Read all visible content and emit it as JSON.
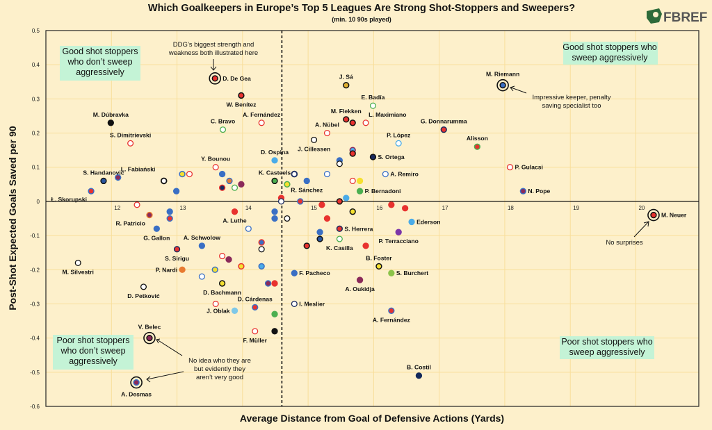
{
  "logo_text": "FBREF",
  "chart_data": {
    "type": "scatter",
    "title": "Which Goalkeepers in Europe’s Top 5 Leagues Are Strong Shot-Stoppers and Sweepers?",
    "subtitle": "(min. 10 90s played)",
    "xlabel": "Average Distance from Goal of Defensive Actions (Yards)",
    "ylabel": "Post-Shot Expected Goals Saved per 90",
    "xlim": [
      11.0,
      20.96
    ],
    "ylim": [
      -0.6,
      0.5
    ],
    "xticks": [
      12,
      13,
      14,
      15,
      16,
      17,
      18,
      19,
      20
    ],
    "yticks": [
      0.5,
      0.4,
      0.3,
      0.2,
      0.1,
      0,
      -0.1,
      -0.2,
      -0.3,
      -0.4,
      -0.5,
      -0.6
    ],
    "grid": true,
    "vline_x": 14.6,
    "quadrants": {
      "top_left": "Good shot stoppers\nwho don’t sweep\naggressively",
      "top_right": "Good shot stoppers who\nsweep aggressively",
      "bottom_left": "Poor shot stoppers\nwho don’t sweep\naggressively",
      "bottom_right": "Poor shot stoppers who\nsweep aggressively"
    },
    "annotations": {
      "degea": "DDG’s biggest strength and\nweakness both illustrated here",
      "riemann": "Impressive keeper, penalty\nsaving specialist too",
      "neuer": "No surprises",
      "belec_desmas": "No idea who they are\nbut evidently they\naren’t very good"
    },
    "colors": {
      "background": "#fdf0cb",
      "quadrant_bg": "#c4f3d6"
    },
    "points": [
      {
        "name": "D. De Gea",
        "x": 13.58,
        "y": 0.36,
        "fill": "#e8322f",
        "stroke": "#111",
        "ring": true,
        "pos": "right"
      },
      {
        "name": "W. Benítez",
        "x": 13.98,
        "y": 0.31,
        "fill": "#e8322f",
        "stroke": "#111",
        "pos": "below"
      },
      {
        "name": "A. Fernández",
        "x": 14.29,
        "y": 0.23,
        "fill": "#fff",
        "stroke": "#e8322f",
        "pos": "above"
      },
      {
        "name": "C. Bravo",
        "x": 13.7,
        "y": 0.21,
        "fill": "#fff",
        "stroke": "#4caf50",
        "pos": "above"
      },
      {
        "name": "M. Dúbravka",
        "x": 11.99,
        "y": 0.23,
        "fill": "#111",
        "stroke": "#111",
        "pos": "above"
      },
      {
        "name": "S. Dimitrievski",
        "x": 12.29,
        "y": 0.17,
        "fill": "#fff",
        "stroke": "#e8322f",
        "pos": "above"
      },
      {
        "name": "D. Ospina",
        "x": 14.49,
        "y": 0.12,
        "fill": "#4aabe8",
        "stroke": "#4aabe8",
        "pos": "above"
      },
      {
        "name": "Y. Bounou",
        "x": 13.59,
        "y": 0.1,
        "fill": "#fff",
        "stroke": "#e8322f",
        "pos": "above"
      },
      {
        "name": "",
        "x": 13.69,
        "y": 0.08,
        "fill": "#3a6fc4",
        "stroke": "#3a6fc4"
      },
      {
        "name": "K. Casteels",
        "x": 14.49,
        "y": 0.06,
        "fill": "#4caf50",
        "stroke": "#111",
        "pos": "above"
      },
      {
        "name": "S. Handanovic",
        "x": 11.88,
        "y": 0.06,
        "fill": "#2a56a0",
        "stroke": "#111",
        "pos": "above"
      },
      {
        "name": "L. Fabiański",
        "x": 12.1,
        "y": 0.07,
        "fill": "#8b2a5a",
        "stroke": "#3a6fc4",
        "pos": "above-right"
      },
      {
        "name": "",
        "x": 12.8,
        "y": 0.06,
        "fill": "#fff",
        "stroke": "#111",
        "thick": true
      },
      {
        "name": "",
        "x": 13.08,
        "y": 0.08,
        "fill": "#f5e030",
        "stroke": "#3a6fc4"
      },
      {
        "name": "",
        "x": 13.19,
        "y": 0.08,
        "fill": "#fff",
        "stroke": "#e8322f"
      },
      {
        "name": "",
        "x": 12.99,
        "y": 0.03,
        "fill": "#3a6fc4",
        "stroke": "#3a6fc4"
      },
      {
        "name": "",
        "x": 13.8,
        "y": 0.06,
        "fill": "#e87a30",
        "stroke": "#3a6fc4"
      },
      {
        "name": "",
        "x": 13.69,
        "y": 0.04,
        "fill": "#1a2a5e",
        "stroke": "#e8322f"
      },
      {
        "name": "",
        "x": 13.88,
        "y": 0.04,
        "fill": "#fff",
        "stroke": "#4caf50"
      },
      {
        "name": "",
        "x": 13.98,
        "y": 0.05,
        "fill": "#8b2a5a",
        "stroke": "#8b2a5a"
      },
      {
        "name": "Ł. Skorupski",
        "x": 11.69,
        "y": 0.03,
        "fill": "#e8322f",
        "stroke": "#3a6fc4",
        "pos": "below-left"
      },
      {
        "name": "",
        "x": 12.39,
        "y": -0.01,
        "fill": "#fff",
        "stroke": "#e8322f"
      },
      {
        "name": "",
        "x": 14.59,
        "y": 0.01,
        "fill": "#e8322f",
        "stroke": "#e8322f"
      },
      {
        "name": "",
        "x": 14.59,
        "y": 0.0,
        "fill": "#fff",
        "stroke": "#1a2a5e"
      },
      {
        "name": "J. Sá",
        "x": 15.58,
        "y": 0.34,
        "fill": "#e0b030",
        "stroke": "#111",
        "pos": "above"
      },
      {
        "name": "E. Badía",
        "x": 15.99,
        "y": 0.28,
        "fill": "#fff",
        "stroke": "#4caf50",
        "pos": "above"
      },
      {
        "name": "M. Flekken",
        "x": 15.58,
        "y": 0.24,
        "fill": "#e8322f",
        "stroke": "#111",
        "pos": "above"
      },
      {
        "name": "",
        "x": 15.68,
        "y": 0.23,
        "fill": "#e8322f",
        "stroke": "#111"
      },
      {
        "name": "L. Maximiano",
        "x": 15.88,
        "y": 0.23,
        "fill": "#fff",
        "stroke": "#e8322f",
        "pos": "above-right"
      },
      {
        "name": "A. Nübel",
        "x": 15.29,
        "y": 0.2,
        "fill": "#fff",
        "stroke": "#e8322f",
        "pos": "above"
      },
      {
        "name": "J. Cillessen",
        "x": 15.09,
        "y": 0.18,
        "fill": "#fff",
        "stroke": "#111",
        "pos": "below"
      },
      {
        "name": "G. Donnarumma",
        "x": 17.07,
        "y": 0.21,
        "fill": "#e8322f",
        "stroke": "#1a2a5e",
        "pos": "above"
      },
      {
        "name": "Alisson",
        "x": 17.58,
        "y": 0.16,
        "fill": "#e8322f",
        "stroke": "#4caf50",
        "pos": "above"
      },
      {
        "name": "P. López",
        "x": 16.38,
        "y": 0.17,
        "fill": "#fff",
        "stroke": "#4aabe8",
        "pos": "above"
      },
      {
        "name": "",
        "x": 15.68,
        "y": 0.15,
        "fill": "#4aabe8",
        "stroke": "#8b2a5a"
      },
      {
        "name": "",
        "x": 15.68,
        "y": 0.14,
        "fill": "#e8322f",
        "stroke": "#111"
      },
      {
        "name": "S. Ortega",
        "x": 15.99,
        "y": 0.13,
        "fill": "#1a2a5e",
        "stroke": "#111",
        "pos": "right"
      },
      {
        "name": "",
        "x": 15.48,
        "y": 0.12,
        "fill": "#3a6fc4",
        "stroke": "#3a6fc4"
      },
      {
        "name": "",
        "x": 15.48,
        "y": 0.11,
        "fill": "#fff",
        "stroke": "#111"
      },
      {
        "name": "M. Riemann",
        "x": 17.97,
        "y": 0.34,
        "fill": "#3a6fc4",
        "stroke": "#111",
        "ring": true,
        "pos": "above"
      },
      {
        "name": "",
        "x": 14.79,
        "y": 0.08,
        "fill": "#fff",
        "stroke": "#1a2a5e",
        "thick": true
      },
      {
        "name": "",
        "x": 15.29,
        "y": 0.08,
        "fill": "#fff",
        "stroke": "#3a6fc4"
      },
      {
        "name": "A. Remiro",
        "x": 16.18,
        "y": 0.08,
        "fill": "#fff",
        "stroke": "#3a6fc4",
        "pos": "right"
      },
      {
        "name": "R. Sánchez",
        "x": 14.98,
        "y": 0.06,
        "fill": "#3a6fc4",
        "stroke": "#3a6fc4",
        "pos": "below"
      },
      {
        "name": "",
        "x": 15.68,
        "y": 0.06,
        "fill": "#fff",
        "stroke": "#e8322f"
      },
      {
        "name": "",
        "x": 15.79,
        "y": 0.06,
        "fill": "#f5e030",
        "stroke": "#f5e030"
      },
      {
        "name": "",
        "x": 14.68,
        "y": 0.05,
        "fill": "#f5e030",
        "stroke": "#4caf50"
      },
      {
        "name": "P. Bernadoni",
        "x": 15.79,
        "y": 0.03,
        "fill": "#4caf50",
        "stroke": "#4caf50",
        "pos": "right"
      },
      {
        "name": "P. Gulacsi",
        "x": 18.08,
        "y": 0.1,
        "fill": "#fff",
        "stroke": "#e8322f",
        "pos": "right"
      },
      {
        "name": "N. Pope",
        "x": 18.28,
        "y": 0.03,
        "fill": "#8b2a5a",
        "stroke": "#3a6fc4",
        "pos": "right"
      },
      {
        "name": "",
        "x": 14.88,
        "y": 0.0,
        "fill": "#e8322f",
        "stroke": "#3a6fc4"
      },
      {
        "name": "",
        "x": 15.48,
        "y": 0.0,
        "fill": "#e8322f",
        "stroke": "#111"
      },
      {
        "name": "",
        "x": 15.58,
        "y": 0.01,
        "fill": "#4aabe8",
        "stroke": "#4aabe8"
      },
      {
        "name": "M. Neuer",
        "x": 20.27,
        "y": -0.04,
        "fill": "#e8322f",
        "stroke": "#111",
        "ring": true,
        "pos": "right"
      },
      {
        "name": "R. Patricio",
        "x": 12.58,
        "y": -0.04,
        "fill": "#8b2a5a",
        "stroke": "#e87a30",
        "pos": "below-left"
      },
      {
        "name": "",
        "x": 12.89,
        "y": -0.03,
        "fill": "#3a6fc4",
        "stroke": "#3a6fc4"
      },
      {
        "name": "",
        "x": 12.89,
        "y": -0.05,
        "fill": "#e8322f",
        "stroke": "#3a6fc4"
      },
      {
        "name": "G. Gallon",
        "x": 12.69,
        "y": -0.08,
        "fill": "#3a6fc4",
        "stroke": "#3a6fc4",
        "pos": "below"
      },
      {
        "name": "A. Luthe",
        "x": 13.88,
        "y": -0.03,
        "fill": "#e8322f",
        "stroke": "#e8322f",
        "pos": "below"
      },
      {
        "name": "",
        "x": 14.49,
        "y": -0.03,
        "fill": "#3a6fc4",
        "stroke": "#3a6fc4"
      },
      {
        "name": "",
        "x": 14.49,
        "y": -0.05,
        "fill": "#3a6fc4",
        "stroke": "#3a6fc4"
      },
      {
        "name": "",
        "x": 14.09,
        "y": -0.08,
        "fill": "#fff",
        "stroke": "#3a6fc4"
      },
      {
        "name": "A. Schwolow",
        "x": 13.38,
        "y": -0.13,
        "fill": "#3a6fc4",
        "stroke": "#3a6fc4",
        "pos": "above"
      },
      {
        "name": "",
        "x": 14.29,
        "y": -0.12,
        "fill": "#3a6fc4",
        "stroke": "#e8322f"
      },
      {
        "name": "",
        "x": 14.29,
        "y": -0.14,
        "fill": "#fff",
        "stroke": "#111"
      },
      {
        "name": "S. Sirigu",
        "x": 13.0,
        "y": -0.14,
        "fill": "#e8322f",
        "stroke": "#1a2a5e",
        "pos": "below"
      },
      {
        "name": "",
        "x": 13.69,
        "y": -0.16,
        "fill": "#fff",
        "stroke": "#e8322f"
      },
      {
        "name": "",
        "x": 13.79,
        "y": -0.17,
        "fill": "#8b2a5a",
        "stroke": "#8b2a5a"
      },
      {
        "name": "",
        "x": 14.29,
        "y": -0.19,
        "fill": "#4aabe8",
        "stroke": "#3a6fc4"
      },
      {
        "name": "",
        "x": 13.98,
        "y": -0.19,
        "fill": "#f5e030",
        "stroke": "#e8322f"
      },
      {
        "name": "",
        "x": 13.58,
        "y": -0.2,
        "fill": "#f5e030",
        "stroke": "#3a6fc4"
      },
      {
        "name": "P. Nardi",
        "x": 13.08,
        "y": -0.2,
        "fill": "#e87a30",
        "stroke": "#e87a30",
        "pos": "left"
      },
      {
        "name": "",
        "x": 13.38,
        "y": -0.22,
        "fill": "#fff",
        "stroke": "#3a6fc4"
      },
      {
        "name": "D. Bachmann",
        "x": 13.69,
        "y": -0.24,
        "fill": "#f5e030",
        "stroke": "#111",
        "pos": "below"
      },
      {
        "name": "",
        "x": 14.39,
        "y": -0.24,
        "fill": "#8b2a5a",
        "stroke": "#3a6fc4"
      },
      {
        "name": "",
        "x": 14.49,
        "y": -0.24,
        "fill": "#e8322f",
        "stroke": "#e8322f"
      },
      {
        "name": "M. Silvestri",
        "x": 11.49,
        "y": -0.18,
        "fill": "#fff",
        "stroke": "#111",
        "pos": "below"
      },
      {
        "name": "D. Petković",
        "x": 12.49,
        "y": -0.25,
        "fill": "#fff",
        "stroke": "#111",
        "pos": "below"
      },
      {
        "name": "",
        "x": 13.59,
        "y": -0.3,
        "fill": "#fff",
        "stroke": "#e8322f"
      },
      {
        "name": "J. Oblak",
        "x": 13.88,
        "y": -0.32,
        "fill": "#7ec8e8",
        "stroke": "#7ec8e8",
        "pos": "left"
      },
      {
        "name": "D. Cárdenas",
        "x": 14.19,
        "y": -0.31,
        "fill": "#e8322f",
        "stroke": "#3a6fc4",
        "pos": "above"
      },
      {
        "name": "",
        "x": 14.49,
        "y": -0.33,
        "fill": "#4caf50",
        "stroke": "#4caf50"
      },
      {
        "name": "F. Müller",
        "x": 14.19,
        "y": -0.38,
        "fill": "#fff",
        "stroke": "#e8322f",
        "pos": "below"
      },
      {
        "name": "",
        "x": 14.49,
        "y": -0.38,
        "fill": "#111",
        "stroke": "#111"
      },
      {
        "name": "V. Belec",
        "x": 12.58,
        "y": -0.4,
        "fill": "#8b2a5a",
        "stroke": "#111",
        "ring": true,
        "pos": "above"
      },
      {
        "name": "A. Desmas",
        "x": 12.38,
        "y": -0.53,
        "fill": "#8b2a5a",
        "stroke": "#3a6fc4",
        "ring": true,
        "pos": "below"
      },
      {
        "name": "",
        "x": 15.21,
        "y": -0.01,
        "fill": "#e8322f",
        "stroke": "#e8322f"
      },
      {
        "name": "",
        "x": 16.27,
        "y": -0.01,
        "fill": "#e8322f",
        "stroke": "#e8322f"
      },
      {
        "name": "",
        "x": 16.48,
        "y": -0.02,
        "fill": "#e8322f",
        "stroke": "#e8322f"
      },
      {
        "name": "",
        "x": 15.68,
        "y": -0.03,
        "fill": "#f5e030",
        "stroke": "#111"
      },
      {
        "name": "",
        "x": 14.68,
        "y": -0.05,
        "fill": "#fff",
        "stroke": "#111"
      },
      {
        "name": "",
        "x": 15.29,
        "y": -0.05,
        "fill": "#e8322f",
        "stroke": "#e8322f"
      },
      {
        "name": "Ederson",
        "x": 16.58,
        "y": -0.06,
        "fill": "#4aabe8",
        "stroke": "#4aabe8",
        "pos": "right"
      },
      {
        "name": "S. Herrera",
        "x": 15.48,
        "y": -0.08,
        "fill": "#e8322f",
        "stroke": "#1a2a5e",
        "pos": "right"
      },
      {
        "name": "",
        "x": 15.18,
        "y": -0.09,
        "fill": "#3a6fc4",
        "stroke": "#3a6fc4"
      },
      {
        "name": "P. Terracciano",
        "x": 16.38,
        "y": -0.09,
        "fill": "#7b35a8",
        "stroke": "#7b35a8",
        "pos": "below"
      },
      {
        "name": "",
        "x": 15.18,
        "y": -0.11,
        "fill": "#2a56a0",
        "stroke": "#111"
      },
      {
        "name": "K. Casilla",
        "x": 15.48,
        "y": -0.11,
        "fill": "#fff",
        "stroke": "#4caf50",
        "pos": "below"
      },
      {
        "name": "",
        "x": 14.98,
        "y": -0.13,
        "fill": "#e8322f",
        "stroke": "#111"
      },
      {
        "name": "",
        "x": 15.88,
        "y": -0.13,
        "fill": "#e8322f",
        "stroke": "#e8322f"
      },
      {
        "name": "B. Foster",
        "x": 16.08,
        "y": -0.19,
        "fill": "#f5e030",
        "stroke": "#111",
        "pos": "above"
      },
      {
        "name": "S. Burchert",
        "x": 16.27,
        "y": -0.21,
        "fill": "#8bc34a",
        "stroke": "#8bc34a",
        "pos": "right"
      },
      {
        "name": "F. Pacheco",
        "x": 14.79,
        "y": -0.21,
        "fill": "#3a6fc4",
        "stroke": "#3a6fc4",
        "pos": "right"
      },
      {
        "name": "A. Oukidja",
        "x": 15.79,
        "y": -0.23,
        "fill": "#8b2a5a",
        "stroke": "#8b2a5a",
        "pos": "below"
      },
      {
        "name": "I. Meslier",
        "x": 14.79,
        "y": -0.3,
        "fill": "#fff",
        "stroke": "#1a2a5e",
        "pos": "right"
      },
      {
        "name": "A. Fernández",
        "x": 16.27,
        "y": -0.32,
        "fill": "#e8322f",
        "stroke": "#3a6fc4",
        "pos": "below"
      },
      {
        "name": "B. Costil",
        "x": 16.69,
        "y": -0.51,
        "fill": "#12285a",
        "stroke": "#12285a",
        "pos": "above"
      }
    ]
  }
}
